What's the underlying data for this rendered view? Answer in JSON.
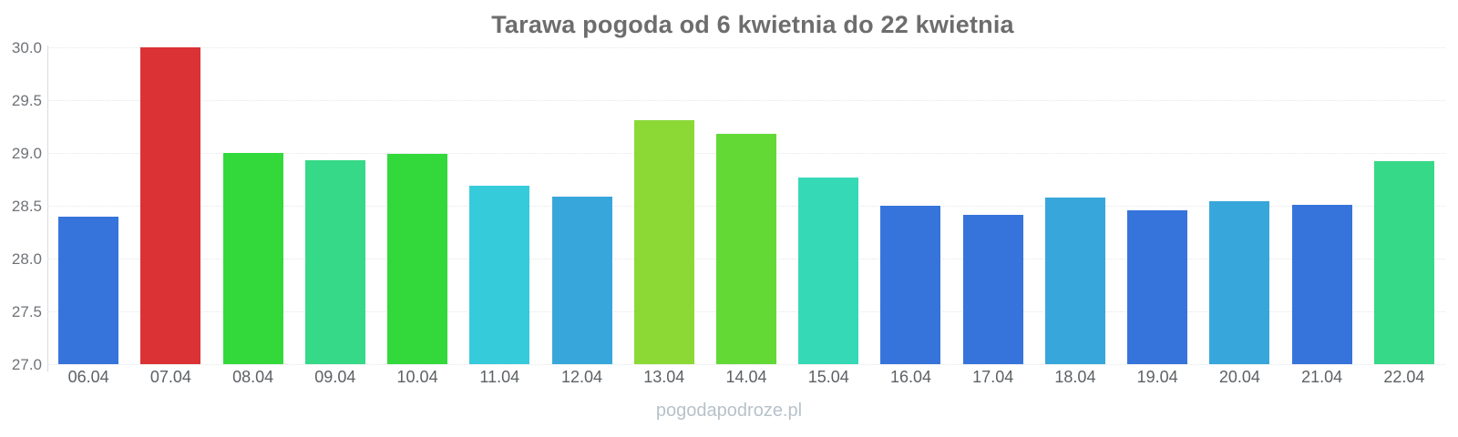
{
  "page": {
    "footer_text": "pogodapodroze.pl"
  },
  "chart_data": {
    "type": "bar",
    "title": "Tarawa pogoda od 6 kwietnia do 22 kwietnia",
    "xlabel": "",
    "ylabel": "",
    "ylim": [
      27.0,
      30.0
    ],
    "ytick_step": 0.5,
    "ytick_labels": [
      "30.0",
      "29.5",
      "29.0",
      "28.5",
      "28.0",
      "27.5",
      "27.0"
    ],
    "grid": "horizontal-dotted",
    "legend_position": "none",
    "categories": [
      "06.04",
      "07.04",
      "08.04",
      "09.04",
      "10.04",
      "11.04",
      "12.04",
      "13.04",
      "14.04",
      "15.04",
      "16.04",
      "17.04",
      "18.04",
      "19.04",
      "20.04",
      "21.04",
      "22.04"
    ],
    "values": [
      28.4,
      30.0,
      29.0,
      28.93,
      28.99,
      28.69,
      28.59,
      29.31,
      29.18,
      28.77,
      28.5,
      28.41,
      28.58,
      28.46,
      28.54,
      28.51,
      28.92
    ],
    "bar_colors": [
      "#3674db",
      "#db3236",
      "#33d93b",
      "#36d987",
      "#33d93b",
      "#36cbdb",
      "#37a7db",
      "#8cd936",
      "#63d936",
      "#36d9b5",
      "#3674db",
      "#3674db",
      "#37a7db",
      "#3674db",
      "#37a7db",
      "#3674db",
      "#36d987"
    ],
    "style_colors": {
      "title_text": "#6d6d6d",
      "axis_tick_text": "#6f7377",
      "gridline": "#e4e7e9",
      "axis_line": "#d8dbdd",
      "watermark_text": "#b6c2ca"
    }
  }
}
